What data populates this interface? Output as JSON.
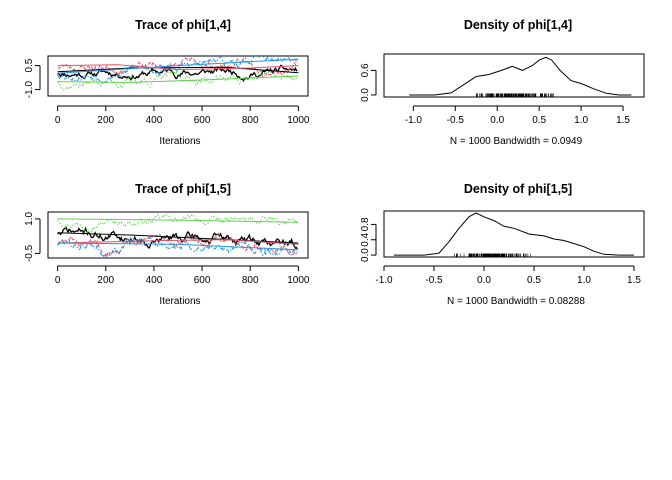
{
  "chart_data": [
    {
      "type": "line",
      "title": "Trace of phi[1,4]",
      "xlabel": "Iterations",
      "xlim": [
        -40,
        1040
      ],
      "ylim": [
        -1.4,
        1.1
      ],
      "xticks": [
        0,
        200,
        400,
        600,
        800,
        1000
      ],
      "yticks": [
        -1.0,
        0.5
      ],
      "ytick_labels": [
        "-1.0",
        "0.5"
      ],
      "n": 1000,
      "colors": [
        "#000000",
        "#DF536B",
        "#61D04F",
        "#2297E6"
      ],
      "series_params": [
        {
          "start": 0.1,
          "end": 0.1,
          "amp": 0.28,
          "seed": 11
        },
        {
          "start": 0.45,
          "end": 0.55,
          "amp": 0.3,
          "seed": 23
        },
        {
          "start": -0.5,
          "end": -0.2,
          "amp": 0.35,
          "seed": 37
        },
        {
          "start": 0.0,
          "end": 0.9,
          "amp": 0.3,
          "seed": 53
        }
      ],
      "smooth": [
        [
          [
            0,
            0.12
          ],
          [
            300,
            0.35
          ],
          [
            700,
            0.4
          ],
          [
            1000,
            0.05
          ]
        ],
        [
          [
            0,
            0.5
          ],
          [
            250,
            0.55
          ],
          [
            500,
            0.25
          ],
          [
            800,
            0.35
          ],
          [
            1000,
            0.5
          ]
        ],
        [
          [
            0,
            -0.5
          ],
          [
            300,
            -0.55
          ],
          [
            600,
            -0.4
          ],
          [
            1000,
            -0.15
          ]
        ],
        [
          [
            0,
            0.02
          ],
          [
            500,
            0.5
          ],
          [
            1000,
            0.9
          ]
        ]
      ]
    },
    {
      "type": "area",
      "title": "Density of phi[1,4]",
      "xlabel": "N = 1000   Bandwidth = 0.0949",
      "xlim": [
        -1.35,
        1.75
      ],
      "ylim": [
        -0.05,
        1.0
      ],
      "xticks": [
        -1.0,
        -0.5,
        0.0,
        0.5,
        1.0,
        1.5
      ],
      "yticks": [
        0.0,
        0.6
      ],
      "ytick_labels": [
        "0.0",
        "0.6"
      ],
      "x": [
        -1.05,
        -0.75,
        -0.55,
        -0.4,
        -0.25,
        -0.1,
        0.05,
        0.18,
        0.3,
        0.42,
        0.5,
        0.58,
        0.65,
        0.75,
        0.88,
        1.0,
        1.15,
        1.3,
        1.45,
        1.6
      ],
      "y": [
        0.0,
        0.0,
        0.05,
        0.25,
        0.45,
        0.5,
        0.6,
        0.7,
        0.6,
        0.72,
        0.85,
        0.92,
        0.85,
        0.6,
        0.35,
        0.28,
        0.15,
        0.04,
        0.0,
        0.0
      ],
      "rug_range": [
        -0.4,
        0.8
      ]
    },
    {
      "type": "line",
      "title": "Trace of phi[1,5]",
      "xlabel": "Iterations",
      "xlim": [
        -40,
        1040
      ],
      "ylim": [
        -0.7,
        1.3
      ],
      "xticks": [
        0,
        200,
        400,
        600,
        800,
        1000
      ],
      "yticks": [
        -0.5,
        1.0
      ],
      "ytick_labels": [
        "-0.5",
        "1.0"
      ],
      "n": 1000,
      "colors": [
        "#000000",
        "#DF536B",
        "#61D04F",
        "#2297E6"
      ],
      "series_params": [
        {
          "start": 0.4,
          "end": -0.1,
          "amp": 0.25,
          "seed": 71
        },
        {
          "start": -0.1,
          "end": -0.05,
          "amp": 0.25,
          "seed": 83
        },
        {
          "start": 1.0,
          "end": 0.8,
          "amp": 0.2,
          "seed": 97
        },
        {
          "start": -0.05,
          "end": -0.35,
          "amp": 0.25,
          "seed": 101
        }
      ],
      "smooth": [
        [
          [
            0,
            0.4
          ],
          [
            300,
            0.3
          ],
          [
            600,
            0.15
          ],
          [
            1000,
            -0.05
          ]
        ],
        [
          [
            0,
            -0.05
          ],
          [
            400,
            0.05
          ],
          [
            700,
            0.1
          ],
          [
            1000,
            -0.1
          ]
        ],
        [
          [
            0,
            1.0
          ],
          [
            500,
            0.95
          ],
          [
            1000,
            0.85
          ]
        ],
        [
          [
            0,
            -0.05
          ],
          [
            500,
            -0.1
          ],
          [
            1000,
            -0.35
          ]
        ]
      ]
    },
    {
      "type": "area",
      "title": "Density of phi[1,5]",
      "xlabel": "N = 1000   Bandwidth = 0.08288",
      "xlim": [
        -1.0,
        1.6
      ],
      "ylim": [
        -0.05,
        1.15
      ],
      "xticks": [
        -1.0,
        -0.5,
        0.0,
        0.5,
        1.0,
        1.5
      ],
      "yticks": [
        0.0,
        0.4,
        0.8
      ],
      "ytick_labels": [
        "0.0",
        "0.4",
        "0.8"
      ],
      "x": [
        -0.9,
        -0.6,
        -0.45,
        -0.35,
        -0.25,
        -0.15,
        -0.08,
        0.0,
        0.1,
        0.2,
        0.3,
        0.45,
        0.6,
        0.7,
        0.8,
        0.9,
        1.0,
        1.1,
        1.2,
        1.35,
        1.5
      ],
      "y": [
        0.0,
        0.0,
        0.05,
        0.35,
        0.7,
        1.0,
        1.1,
        1.0,
        0.9,
        0.75,
        0.7,
        0.55,
        0.5,
        0.42,
        0.38,
        0.3,
        0.22,
        0.1,
        0.02,
        0.0,
        0.0
      ],
      "rug_range": [
        -0.35,
        0.55
      ]
    }
  ]
}
